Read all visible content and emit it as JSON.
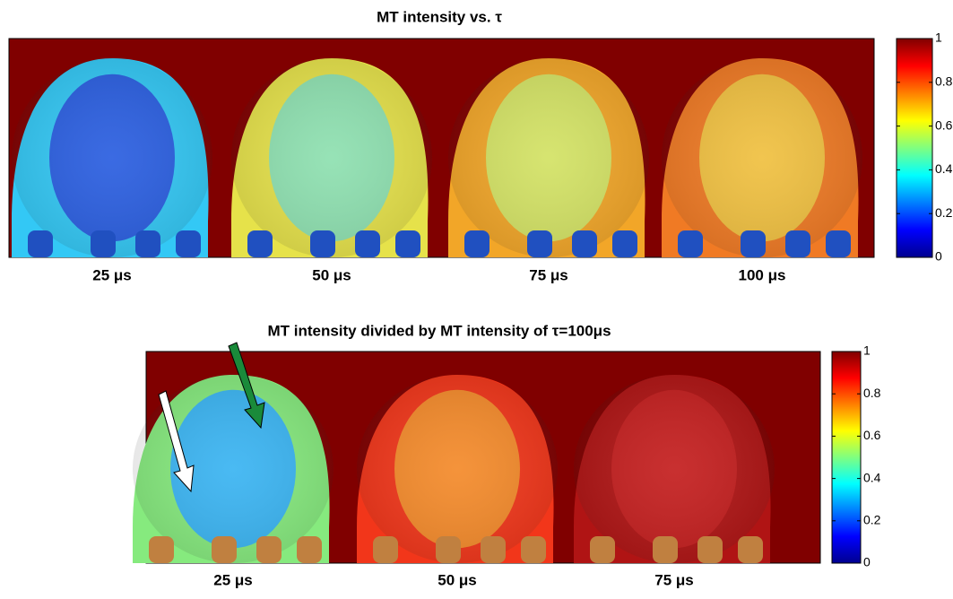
{
  "top_panel": {
    "title": "MT intensity vs. τ",
    "labels": [
      "25 μs",
      "50 μs",
      "75 μs",
      "100 μs"
    ],
    "colorbar": {
      "lim": [
        0,
        1
      ],
      "ticks": [
        0,
        0.2,
        0.4,
        0.6,
        0.8,
        1
      ]
    }
  },
  "bottom_panel": {
    "title": "MT intensity divided by MT intensity of τ=100μs",
    "labels": [
      "25 μs",
      "50 μs",
      "75 μs"
    ],
    "colorbar": {
      "lim": [
        0,
        1
      ],
      "ticks": [
        0,
        0.2,
        0.4,
        0.6,
        0.8,
        1
      ]
    }
  }
}
